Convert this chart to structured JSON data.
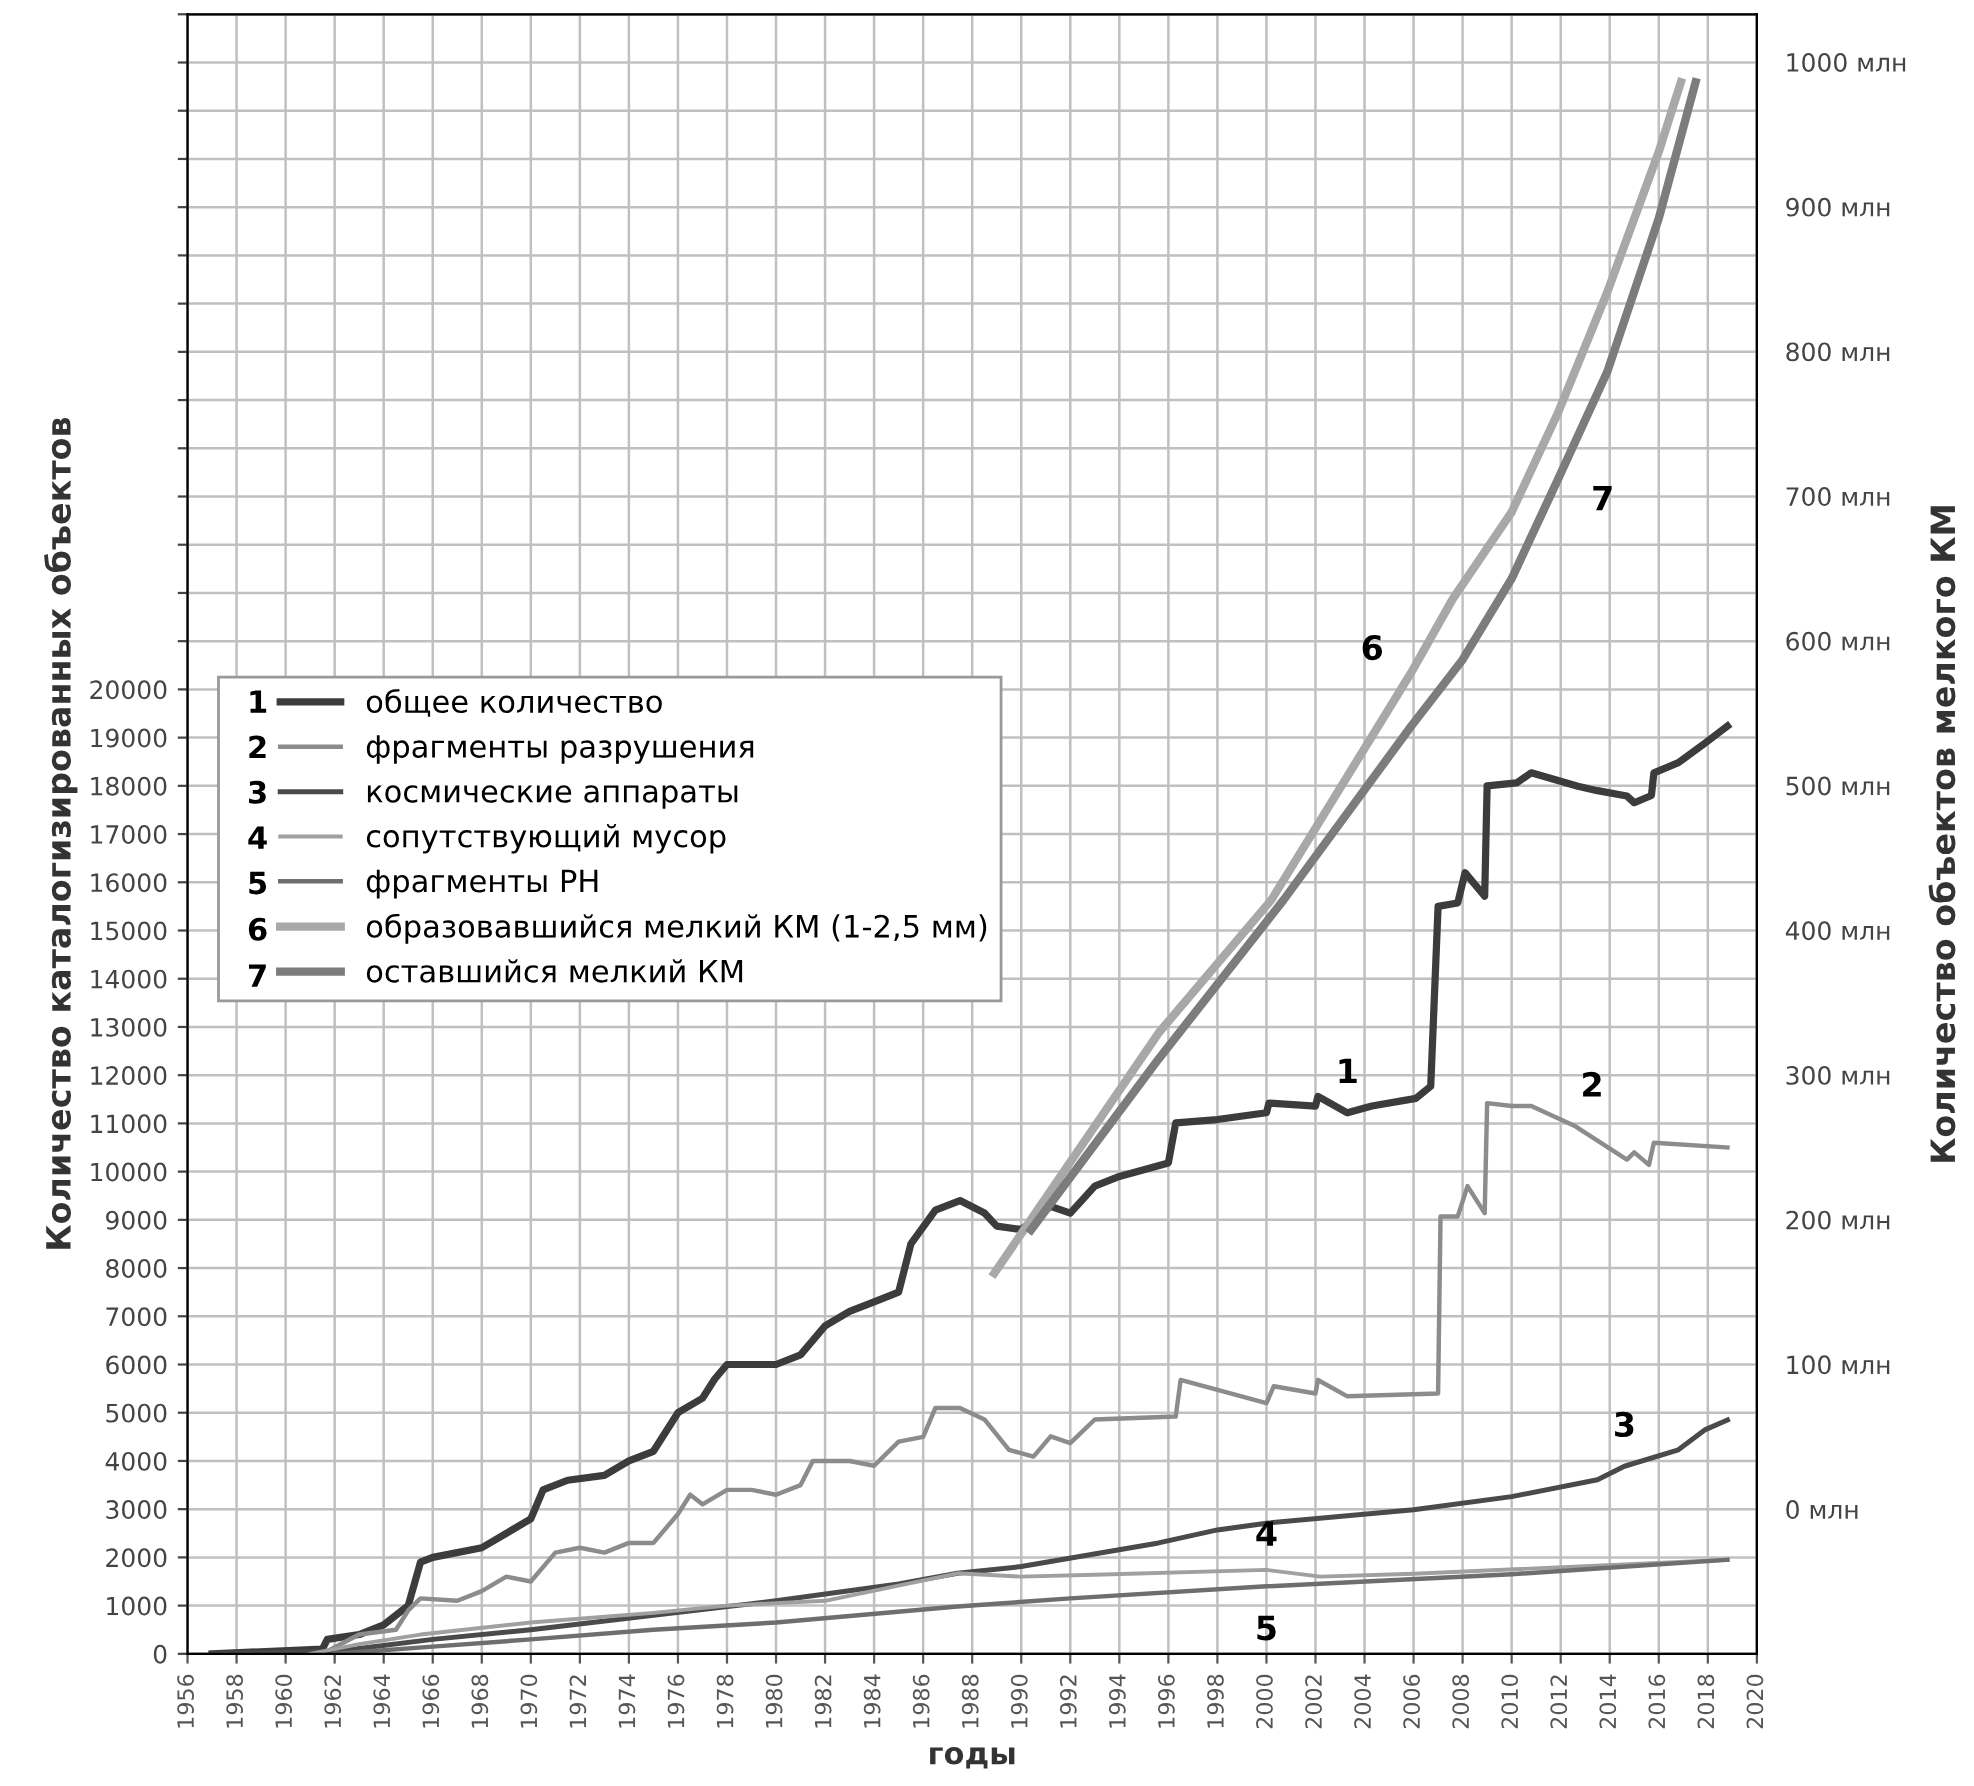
{
  "chart_data": {
    "type": "line",
    "xlabel": "годы",
    "ylabel": "Количество каталогизированных объектов",
    "y2label": "Количество объектов мелкого КМ",
    "xlim": [
      1956,
      2020
    ],
    "xticks": [
      1956,
      1958,
      1960,
      1962,
      1964,
      1966,
      1968,
      1970,
      1972,
      1974,
      1976,
      1978,
      1980,
      1982,
      1984,
      1986,
      1988,
      1990,
      1992,
      1994,
      1996,
      1998,
      2000,
      2002,
      2004,
      2006,
      2008,
      2010,
      2012,
      2014,
      2016,
      2018,
      2020
    ],
    "ylim": [
      0,
      34000
    ],
    "yticks": [
      0,
      1000,
      2000,
      3000,
      4000,
      5000,
      6000,
      7000,
      8000,
      9000,
      10000,
      11000,
      12000,
      13000,
      14000,
      15000,
      16000,
      17000,
      18000,
      19000,
      20000,
      {
        "value": 21000,
        "label": null
      },
      {
        "value": 22000,
        "label": null
      },
      {
        "value": 23000,
        "label": null
      },
      {
        "value": 24000,
        "label": null
      },
      {
        "value": 25000,
        "label": null
      },
      {
        "value": 26000,
        "label": null
      },
      {
        "value": 27000,
        "label": null
      },
      {
        "value": 28000,
        "label": null
      },
      {
        "value": 29000,
        "label": null
      },
      {
        "value": 30000,
        "label": null
      },
      {
        "value": 31000,
        "label": null
      },
      {
        "value": 32000,
        "label": null
      },
      {
        "value": 33000,
        "label": null
      },
      {
        "value": 34000,
        "label": null
      }
    ],
    "y2lim": [
      -100,
      1033
    ],
    "y2ticks": [
      {
        "value": 0,
        "label": "0 млн"
      },
      {
        "value": 100,
        "label": "100 млн"
      },
      {
        "value": 200,
        "label": "200 млн"
      },
      {
        "value": 300,
        "label": "300 млн"
      },
      {
        "value": 400,
        "label": "400 млн"
      },
      {
        "value": 500,
        "label": "500 млн"
      },
      {
        "value": 600,
        "label": "600 млн"
      },
      {
        "value": 700,
        "label": "700 млн"
      },
      {
        "value": 800,
        "label": "800 млн"
      },
      {
        "value": 900,
        "label": "900 млн"
      },
      {
        "value": 1000,
        "label": "1000 млн"
      }
    ],
    "grid": true,
    "legend": "left",
    "marker": "none",
    "line_style": "solid",
    "series": [
      {
        "name": "общее количество",
        "color": "#3c3c3c",
        "x": [
          1957,
          1961.5,
          1961.7,
          1963,
          1964,
          1965,
          1965.5,
          1966,
          1968,
          1969,
          1970,
          1970.5,
          1971.5,
          1973,
          1974,
          1975,
          1976,
          1977,
          1977.5,
          1978,
          1980,
          1981,
          1982,
          1983,
          1984,
          1985,
          1985.5,
          1986.5,
          1987.5,
          1988.5,
          1989,
          1990,
          1991.2,
          1992,
          1993,
          1994,
          1996,
          1996.3,
          1998,
          2000,
          2000.1,
          2002,
          2002.1,
          2003.3,
          2004.3,
          2006.1,
          2006.7,
          2007,
          2007.8,
          2008.1,
          2008.9,
          2009,
          2010.2,
          2010.8,
          2012.7,
          2013.5,
          2014.7,
          2015,
          2015.7,
          2015.8,
          2016.8,
          2017.9,
          2018.8
        ],
        "values": [
          0,
          100,
          300,
          400,
          600,
          1000,
          1900,
          2000,
          2200,
          2500,
          2800,
          3400,
          3600,
          3700,
          4000,
          4200,
          5000,
          5300,
          5700,
          6000,
          6000,
          6200,
          6800,
          7100,
          7300,
          7500,
          8500,
          9200,
          9400,
          9140,
          8870,
          8800,
          9280,
          9140,
          9700,
          9900,
          10180,
          11010,
          11080,
          11220,
          11420,
          11360,
          11560,
          11220,
          11360,
          11520,
          11770,
          15500,
          15570,
          16200,
          15710,
          18000,
          18060,
          18270,
          17990,
          17900,
          17790,
          17650,
          17800,
          18270,
          18480,
          18890,
          19240
        ]
      },
      {
        "name": "фрагменты разрушения",
        "color": "#8c8c8c",
        "x": [
          1961.5,
          1963,
          1964.5,
          1965,
          1965.5,
          1967,
          1968,
          1969,
          1970,
          1971,
          1972,
          1973,
          1974,
          1975,
          1976,
          1976.5,
          1977,
          1978,
          1979,
          1980,
          1981,
          1981.5,
          1983,
          1984,
          1985,
          1986,
          1986.5,
          1987.5,
          1988.5,
          1989.5,
          1990.5,
          1991.2,
          1992,
          1993,
          1996.3,
          1996.5,
          2000,
          2000.3,
          2002,
          2002.1,
          2003.3,
          2007,
          2007.1,
          2007.8,
          2008.2,
          2008.9,
          2009,
          2010,
          2010.8,
          2012.6,
          2014.7,
          2015,
          2015.6,
          2015.8,
          2018.8
        ],
        "values": [
          0,
          400,
          500,
          900,
          1150,
          1100,
          1300,
          1600,
          1500,
          2100,
          2200,
          2100,
          2300,
          2300,
          2900,
          3300,
          3100,
          3400,
          3400,
          3300,
          3500,
          4000,
          4000,
          3900,
          4400,
          4500,
          5100,
          5100,
          4860,
          4230,
          4090,
          4510,
          4370,
          4860,
          4920,
          5680,
          5200,
          5550,
          5400,
          5680,
          5340,
          5400,
          9070,
          9070,
          9700,
          9140,
          11420,
          11360,
          11360,
          10940,
          10250,
          10400,
          10140,
          10600,
          10500
        ]
      },
      {
        "name": "космические аппараты",
        "color": "#4a4a4a",
        "x": [
          1957,
          1962,
          1966,
          1970,
          1975,
          1980,
          1985,
          1987.4,
          1990,
          1995.6,
          1998,
          2000,
          2006,
          2010,
          2013.5,
          2014.6,
          2016.8,
          2017.9,
          2018.8
        ],
        "values": [
          0,
          50,
          300,
          500,
          800,
          1100,
          1450,
          1670,
          1810,
          2300,
          2570,
          2710,
          2990,
          3260,
          3610,
          3890,
          4230,
          4650,
          4850
        ]
      },
      {
        "name": "сопутствующий мусор",
        "color": "#a0a0a0",
        "x": [
          1961,
          1963,
          1965.5,
          1970,
          1975,
          1978,
          1982,
          1987.4,
          1990,
          1993,
          2000,
          2002.2,
          2006,
          2018.8
        ],
        "values": [
          0,
          200,
          400,
          650,
          850,
          1000,
          1100,
          1670,
          1600,
          1640,
          1740,
          1600,
          1660,
          1950
        ]
      },
      {
        "name": "фрагменты РН",
        "color": "#6e6e6e",
        "x": [
          1962,
          1966,
          1970,
          1975,
          1980,
          1987.4,
          1992,
          2000,
          2010,
          2018.8
        ],
        "values": [
          0,
          150,
          300,
          500,
          650,
          980,
          1150,
          1400,
          1650,
          1950
        ]
      },
      {
        "name": "образовавшийся мелкий КМ (1-2,5 мм)",
        "color": "#a8a8a8",
        "axis": "y2",
        "x": [
          1988.9,
          1995.6,
          2000.2,
          2005.9,
          2007.6,
          2010,
          2011.9,
          2013.9,
          2016,
          2016.9
        ],
        "values": [
          163,
          329,
          421,
          578,
          629,
          689,
          758,
          841,
          938,
          986
        ]
      },
      {
        "name": "оставшийся мелкий КМ",
        "color": "#7c7c7c",
        "axis": "y2",
        "x": [
          1990.4,
          1995.6,
          2000.7,
          2005.9,
          2008,
          2010,
          2011.9,
          2013.9,
          2016,
          2017.5
        ],
        "values": [
          193,
          311,
          421,
          541,
          587,
          643,
          712,
          786,
          892,
          986
        ]
      }
    ],
    "annotations": [
      "1",
      "2",
      "3",
      "4",
      "5",
      "6",
      "7"
    ]
  }
}
